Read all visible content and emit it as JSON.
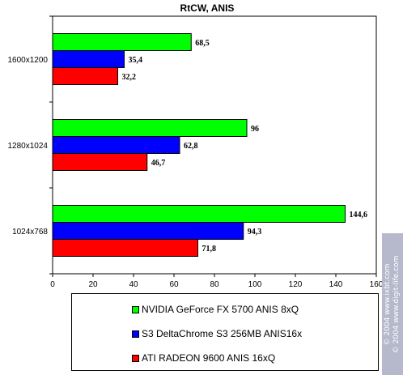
{
  "chart_data": {
    "type": "bar",
    "orientation": "horizontal",
    "title": "RtCW, ANIS",
    "categories": [
      "1600x1200",
      "1280x1024",
      "1024x768"
    ],
    "series": [
      {
        "name": "NVIDIA GeForce FX 5700 ANIS 8xQ",
        "color": "#00ff00",
        "values": [
          68.5,
          96,
          144.6
        ],
        "labels": [
          "68,5",
          "96",
          "144,6"
        ]
      },
      {
        "name": "S3 DeltaChrome S3 256MB ANIS16x",
        "color": "#0000ff",
        "values": [
          35.4,
          62.8,
          94.3
        ],
        "labels": [
          "35,4",
          "62,8",
          "94,3"
        ]
      },
      {
        "name": "ATI RADEON 9600 ANIS 16xQ",
        "color": "#ff0000",
        "values": [
          32.2,
          46.7,
          71.8
        ],
        "labels": [
          "32,2",
          "46,7",
          "71,8"
        ]
      }
    ],
    "x_ticks": [
      "0",
      "20",
      "40",
      "60",
      "80",
      "100",
      "120",
      "140",
      "160"
    ],
    "xlim": [
      0,
      160
    ],
    "grid": false,
    "legend_placement": "bottom"
  },
  "watermark": {
    "line1": "© 2004 www.ixbt.com",
    "line2": "© 2004 www.digit-life.com"
  }
}
